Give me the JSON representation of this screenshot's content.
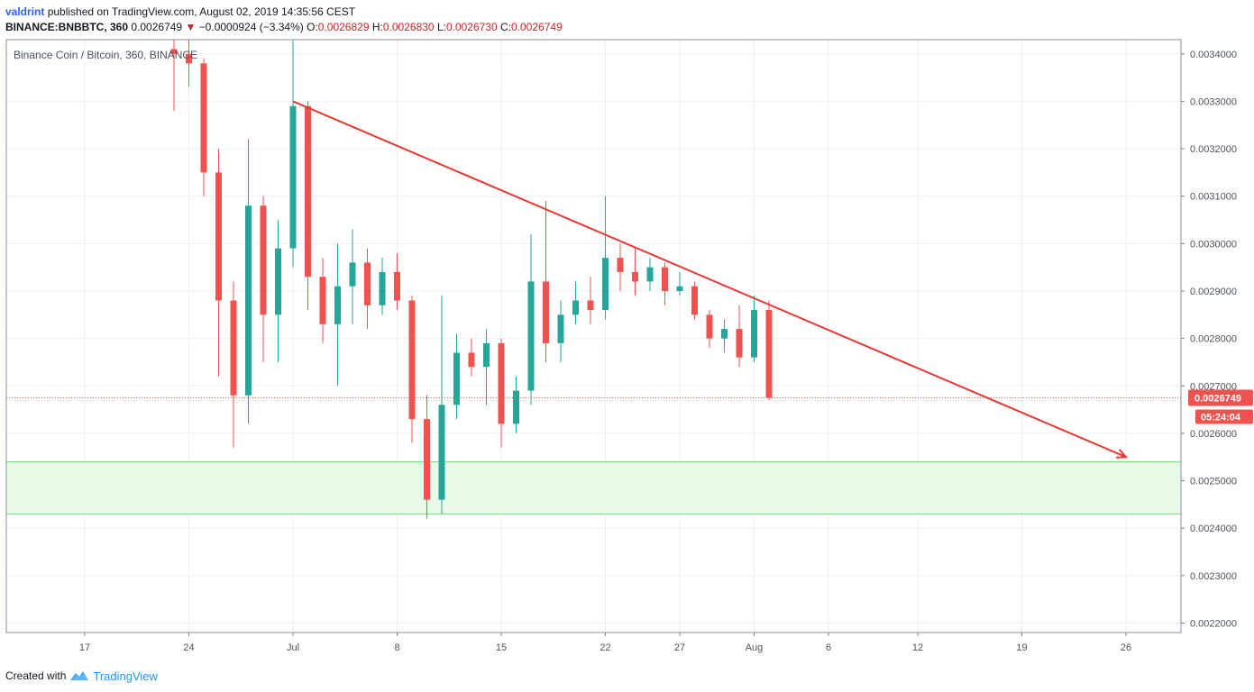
{
  "header": {
    "author": "valdrint",
    "published_text": "published on TradingView.com, August 02, 2019 14:35:56 CEST",
    "symbol": "BINANCE:BNBBTC, 360",
    "last": "0.0026749",
    "down_arrow": "▼",
    "change": "−0.0000924 (−3.34%)",
    "o_label": "O:",
    "o_value": "0.0026829",
    "h_label": "H:",
    "h_value": "0.0026830",
    "l_label": "L:",
    "l_value": "0.0026730",
    "c_label": "C:",
    "c_value": "0.0026749"
  },
  "legend_title": "Binance Coin / Bitcoin, 360, BINANCE",
  "price_label": "0.0026749",
  "countdown_label": "05:24:04",
  "footer": {
    "created_with": "Created with",
    "brand": "TradingView"
  },
  "colors": {
    "up": "#26a69a",
    "down": "#ef5350",
    "trendline": "#e53935",
    "zone_fill": "#e8fbe8",
    "zone_line": "#7ddc7d",
    "grid": "#eaf0f6",
    "price_line": "#ef5350"
  },
  "chart_data": {
    "type": "candlestick",
    "title": "Binance Coin / Bitcoin, 360, BINANCE",
    "x_ticks": [
      "17",
      "24",
      "Jul",
      "8",
      "15",
      "22",
      "27",
      "Aug",
      "6",
      "12",
      "19",
      "26"
    ],
    "y_ticks": [
      "0.0022000",
      "0.0023000",
      "0.0024000",
      "0.0025000",
      "0.0026000",
      "0.0027000",
      "0.0028000",
      "0.0029000",
      "0.0030000",
      "0.0031000",
      "0.0032000",
      "0.0033000",
      "0.0034000"
    ],
    "ylim": [
      0.00218,
      0.00343
    ],
    "last_price": 0.0026749,
    "support_zone": [
      0.00243,
      0.00254
    ],
    "trendline": {
      "from": [
        "Jul 1",
        0.0033
      ],
      "to": [
        "Jul 26",
        0.00255
      ]
    },
    "ohlc": [
      {
        "x": "Jun 23",
        "o": 0.00341,
        "h": 0.00343,
        "l": 0.00328,
        "c": 0.0034
      },
      {
        "x": "Jun 24",
        "o": 0.0034,
        "h": 0.00343,
        "l": 0.00333,
        "c": 0.00338
      },
      {
        "x": "Jun 25",
        "o": 0.00338,
        "h": 0.00339,
        "l": 0.0031,
        "c": 0.00315
      },
      {
        "x": "Jun 26",
        "o": 0.00315,
        "h": 0.0032,
        "l": 0.00272,
        "c": 0.00288
      },
      {
        "x": "Jun 27",
        "o": 0.00288,
        "h": 0.00292,
        "l": 0.00257,
        "c": 0.00268
      },
      {
        "x": "Jun 28",
        "o": 0.00268,
        "h": 0.00322,
        "l": 0.00262,
        "c": 0.00308
      },
      {
        "x": "Jun 29",
        "o": 0.00308,
        "h": 0.0031,
        "l": 0.00275,
        "c": 0.00285
      },
      {
        "x": "Jun 30",
        "o": 0.00285,
        "h": 0.00305,
        "l": 0.00275,
        "c": 0.00299
      },
      {
        "x": "Jul 1",
        "o": 0.00299,
        "h": 0.00343,
        "l": 0.00295,
        "c": 0.00329
      },
      {
        "x": "Jul 2",
        "o": 0.00329,
        "h": 0.0033,
        "l": 0.00286,
        "c": 0.00293
      },
      {
        "x": "Jul 3",
        "o": 0.00293,
        "h": 0.00297,
        "l": 0.00279,
        "c": 0.00283
      },
      {
        "x": "Jul 4",
        "o": 0.00283,
        "h": 0.003,
        "l": 0.0027,
        "c": 0.00291
      },
      {
        "x": "Jul 5",
        "o": 0.00291,
        "h": 0.00303,
        "l": 0.00283,
        "c": 0.00296
      },
      {
        "x": "Jul 6",
        "o": 0.00296,
        "h": 0.00299,
        "l": 0.00282,
        "c": 0.00287
      },
      {
        "x": "Jul 7",
        "o": 0.00287,
        "h": 0.00297,
        "l": 0.00285,
        "c": 0.00294
      },
      {
        "x": "Jul 8",
        "o": 0.00294,
        "h": 0.00298,
        "l": 0.00286,
        "c": 0.00288
      },
      {
        "x": "Jul 9",
        "o": 0.00288,
        "h": 0.00289,
        "l": 0.00258,
        "c": 0.00263
      },
      {
        "x": "Jul 10",
        "o": 0.00263,
        "h": 0.00268,
        "l": 0.00242,
        "c": 0.00246
      },
      {
        "x": "Jul 11",
        "o": 0.00246,
        "h": 0.00289,
        "l": 0.00243,
        "c": 0.00266
      },
      {
        "x": "Jul 12",
        "o": 0.00266,
        "h": 0.00281,
        "l": 0.00263,
        "c": 0.00277
      },
      {
        "x": "Jul 13",
        "o": 0.00277,
        "h": 0.0028,
        "l": 0.00272,
        "c": 0.00274
      },
      {
        "x": "Jul 14",
        "o": 0.00274,
        "h": 0.00282,
        "l": 0.00266,
        "c": 0.00279
      },
      {
        "x": "Jul 15",
        "o": 0.00279,
        "h": 0.0028,
        "l": 0.00257,
        "c": 0.00262
      },
      {
        "x": "Jul 16",
        "o": 0.00262,
        "h": 0.00272,
        "l": 0.0026,
        "c": 0.00269
      },
      {
        "x": "Jul 17",
        "o": 0.00269,
        "h": 0.00302,
        "l": 0.00266,
        "c": 0.00292
      },
      {
        "x": "Jul 18",
        "o": 0.00292,
        "h": 0.00309,
        "l": 0.00275,
        "c": 0.00279
      },
      {
        "x": "Jul 19",
        "o": 0.00279,
        "h": 0.00288,
        "l": 0.00275,
        "c": 0.00285
      },
      {
        "x": "Jul 20",
        "o": 0.00285,
        "h": 0.00292,
        "l": 0.00283,
        "c": 0.00288
      },
      {
        "x": "Jul 21",
        "o": 0.00288,
        "h": 0.00293,
        "l": 0.00283,
        "c": 0.00286
      },
      {
        "x": "Jul 22",
        "o": 0.00286,
        "h": 0.0031,
        "l": 0.00284,
        "c": 0.00297
      },
      {
        "x": "Jul 23",
        "o": 0.00297,
        "h": 0.003,
        "l": 0.0029,
        "c": 0.00294
      },
      {
        "x": "Jul 24",
        "o": 0.00294,
        "h": 0.00299,
        "l": 0.00289,
        "c": 0.00292
      },
      {
        "x": "Jul 25",
        "o": 0.00292,
        "h": 0.00297,
        "l": 0.0029,
        "c": 0.00295
      },
      {
        "x": "Jul 26",
        "o": 0.00295,
        "h": 0.00296,
        "l": 0.00287,
        "c": 0.0029
      },
      {
        "x": "Jul 27",
        "o": 0.0029,
        "h": 0.00294,
        "l": 0.00289,
        "c": 0.00291
      },
      {
        "x": "Jul 28",
        "o": 0.00291,
        "h": 0.00292,
        "l": 0.00284,
        "c": 0.00285
      },
      {
        "x": "Jul 29",
        "o": 0.00285,
        "h": 0.00286,
        "l": 0.00278,
        "c": 0.0028
      },
      {
        "x": "Jul 30",
        "o": 0.0028,
        "h": 0.00284,
        "l": 0.00277,
        "c": 0.00282
      },
      {
        "x": "Jul 31",
        "o": 0.00282,
        "h": 0.00287,
        "l": 0.00274,
        "c": 0.00276
      },
      {
        "x": "Aug 1",
        "o": 0.00276,
        "h": 0.00289,
        "l": 0.00275,
        "c": 0.00286
      },
      {
        "x": "Aug 2",
        "o": 0.00286,
        "h": 0.00288,
        "l": 0.00267,
        "c": 0.0026749
      }
    ]
  }
}
